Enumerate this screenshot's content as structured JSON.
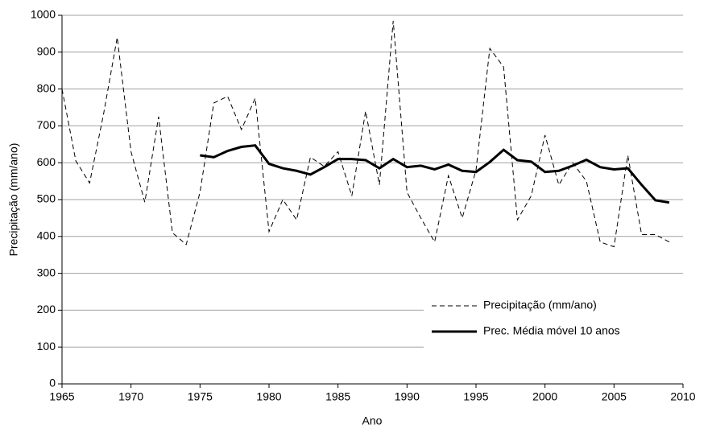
{
  "chart_data": {
    "type": "line",
    "x_label": "Ano",
    "y_label": "Precipitação (mm/ano)",
    "x": [
      1965,
      1966,
      1967,
      1968,
      1969,
      1970,
      1971,
      1972,
      1973,
      1974,
      1975,
      1976,
      1977,
      1978,
      1979,
      1980,
      1981,
      1982,
      1983,
      1984,
      1985,
      1986,
      1987,
      1988,
      1989,
      1990,
      1991,
      1992,
      1993,
      1994,
      1995,
      1996,
      1997,
      1998,
      1999,
      2000,
      2001,
      2002,
      2003,
      2004,
      2005,
      2006,
      2007,
      2008,
      2009
    ],
    "series": [
      {
        "name": "Precipitação (mm/ano)",
        "color": "#000000",
        "dashed": true,
        "values": [
          800,
          605,
          545,
          730,
          940,
          630,
          493,
          725,
          410,
          378,
          520,
          762,
          780,
          690,
          775,
          413,
          500,
          445,
          615,
          590,
          630,
          510,
          740,
          540,
          985,
          520,
          450,
          385,
          565,
          450,
          580,
          910,
          860,
          445,
          510,
          675,
          540,
          600,
          550,
          385,
          372,
          620,
          405,
          405,
          385
        ]
      },
      {
        "name": "Prec. Média móvel 10 anos",
        "color": "#000000",
        "dashed": false,
        "values": [
          null,
          null,
          null,
          null,
          null,
          null,
          null,
          null,
          null,
          null,
          620,
          615,
          632,
          643,
          647,
          597,
          585,
          578,
          568,
          588,
          610,
          610,
          607,
          585,
          610,
          588,
          592,
          582,
          595,
          578,
          575,
          602,
          635,
          607,
          603,
          575,
          578,
          592,
          608,
          588,
          582,
          585,
          540,
          498,
          492
        ]
      }
    ],
    "xlim": [
      1965,
      2010
    ],
    "xticks": [
      1965,
      1970,
      1975,
      1980,
      1985,
      1990,
      1995,
      2000,
      2005,
      2010
    ],
    "ylim": [
      0,
      1000
    ],
    "yticks": [
      0,
      100,
      200,
      300,
      400,
      500,
      600,
      700,
      800,
      900,
      1000
    ],
    "grid": true
  }
}
